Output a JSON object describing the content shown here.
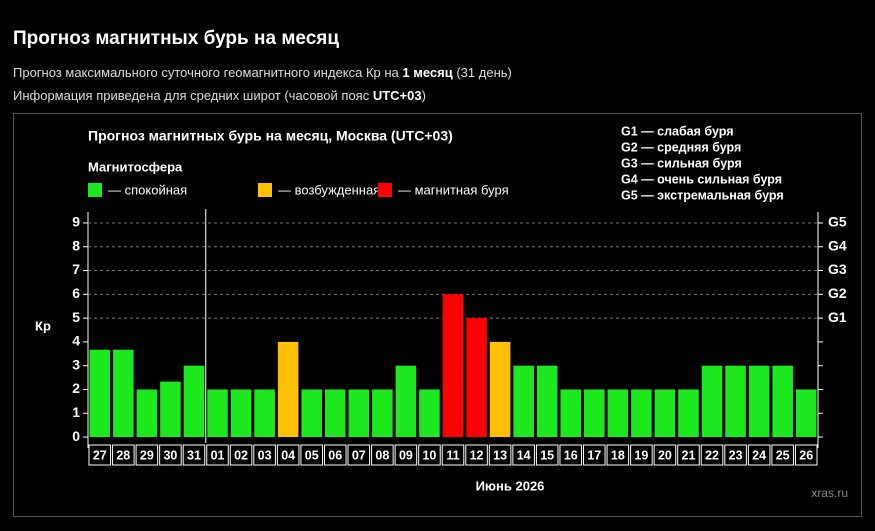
{
  "header": {
    "title": "Прогноз магнитных бурь на месяц",
    "line1": [
      "Прогноз максимального суточного геомагнитного индекса Кр на ",
      "1 месяц",
      " (31 день)"
    ],
    "line2": [
      "Информация приведена для средних широт (часовой пояс ",
      "UTC+03",
      ")"
    ]
  },
  "chart_data": {
    "type": "bar",
    "title": "Прогноз магнитных бурь на месяц, Москва (UTC+03)",
    "legend_title": "Магнитосфера",
    "legend": [
      {
        "name": "— спокойная",
        "color": "#1ee81e"
      },
      {
        "name": "— возбужденная",
        "color": "#ffc000"
      },
      {
        "name": "— магнитная буря",
        "color": "#ff0000"
      }
    ],
    "g_legend": [
      "G1 — слабая буря",
      "G2 — средняя буря",
      "G3 — сильная буря",
      "G4 — очень сильная буря",
      "G5 — экстремальная буря"
    ],
    "y_label": "Кр",
    "x_label": "Июнь 2026",
    "watermark": "xras.ru",
    "categories": [
      "27",
      "28",
      "29",
      "30",
      "31",
      "01",
      "02",
      "03",
      "04",
      "05",
      "06",
      "07",
      "08",
      "09",
      "10",
      "11",
      "12",
      "13",
      "14",
      "15",
      "16",
      "17",
      "18",
      "19",
      "20",
      "21",
      "22",
      "23",
      "24",
      "25",
      "26"
    ],
    "values": [
      3.67,
      3.67,
      2,
      2.33,
      3,
      2,
      2,
      2,
      4,
      2,
      2,
      2,
      2,
      3,
      2,
      6,
      5,
      4,
      3,
      3,
      2,
      2,
      2,
      2,
      2,
      2,
      3,
      3,
      3,
      3,
      2
    ],
    "colors": [
      "#1ee81e",
      "#1ee81e",
      "#1ee81e",
      "#1ee81e",
      "#1ee81e",
      "#1ee81e",
      "#1ee81e",
      "#1ee81e",
      "#ffc000",
      "#1ee81e",
      "#1ee81e",
      "#1ee81e",
      "#1ee81e",
      "#1ee81e",
      "#1ee81e",
      "#ff0000",
      "#ff0000",
      "#ffc000",
      "#1ee81e",
      "#1ee81e",
      "#1ee81e",
      "#1ee81e",
      "#1ee81e",
      "#1ee81e",
      "#1ee81e",
      "#1ee81e",
      "#1ee81e",
      "#1ee81e",
      "#1ee81e",
      "#1ee81e",
      "#1ee81e"
    ],
    "ylim": [
      -0.25,
      9.25
    ],
    "yticks": [
      0,
      1,
      2,
      3,
      4,
      5,
      6,
      7,
      8,
      9
    ],
    "y2ticks": [
      {
        "value": 5,
        "label": "G1"
      },
      {
        "value": 6,
        "label": "G2"
      },
      {
        "value": 7,
        "label": "G3"
      },
      {
        "value": 8,
        "label": "G4"
      },
      {
        "value": 9,
        "label": "G5"
      }
    ]
  }
}
